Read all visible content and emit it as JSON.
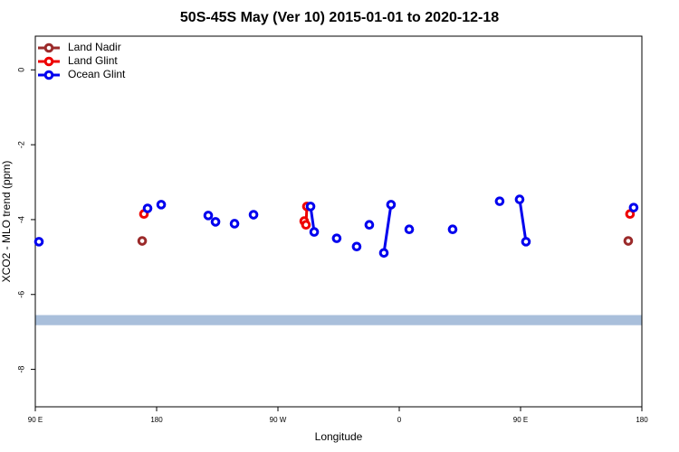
{
  "chart_data": {
    "type": "line",
    "title": "50S-45S May (Ver 10)   2015-01-01 to 2020-12-18",
    "x_label": "Longitude",
    "y_label": "XCO2 - MLO trend (ppm)",
    "xlim": [
      90,
      540
    ],
    "xticks": [
      {
        "value": 90,
        "label": "90 E"
      },
      180,
      {
        "value": 270,
        "label": "90 W"
      },
      {
        "value": 360,
        "label": "0"
      },
      {
        "value": 450,
        "label": "90 E"
      },
      {
        "value": 540,
        "label": "180"
      }
    ],
    "ylim": [
      -9,
      0.9
    ],
    "yticks": [
      0,
      -2,
      -4,
      -6,
      -8
    ],
    "band": [
      -6.82,
      -6.55
    ],
    "band_color": "#a9bfdb",
    "legend": "top-left",
    "series": [
      {
        "name": "Land Nadir",
        "color": "#9b2a2a",
        "x": [
          169.3,
          null,
          529.9
        ],
        "values": [
          -4.57,
          null,
          -4.57
        ]
      },
      {
        "name": "Land Glint",
        "color": "#ee0000",
        "x": [
          170.6,
          null,
          289.5,
          290.8,
          291.5,
          null,
          531.2
        ],
        "values": [
          -3.85,
          null,
          -4.04,
          -4.14,
          -3.65,
          null,
          -3.85
        ]
      },
      {
        "name": "Ocean Glint",
        "color": "#0000ee",
        "x": [
          92.7,
          null,
          173.3,
          null,
          183.4,
          null,
          218.3,
          null,
          223.7,
          null,
          237.8,
          null,
          251.9,
          null,
          294.2,
          296.9,
          null,
          313.6,
          null,
          328.4,
          null,
          337.8,
          null,
          348.6,
          353.9,
          null,
          367.4,
          null,
          399.6,
          null,
          434.5,
          null,
          449.3,
          454.0,
          null,
          533.9
        ],
        "values": [
          -4.59,
          null,
          -3.7,
          null,
          -3.6,
          null,
          -3.89,
          null,
          -4.06,
          null,
          -4.11,
          null,
          -3.87,
          null,
          -3.65,
          -4.33,
          null,
          -4.5,
          null,
          -4.72,
          null,
          -4.14,
          null,
          -4.89,
          -3.6,
          null,
          -4.26,
          null,
          -4.26,
          null,
          -3.51,
          null,
          -3.46,
          -4.59,
          null,
          -3.68
        ]
      }
    ]
  }
}
